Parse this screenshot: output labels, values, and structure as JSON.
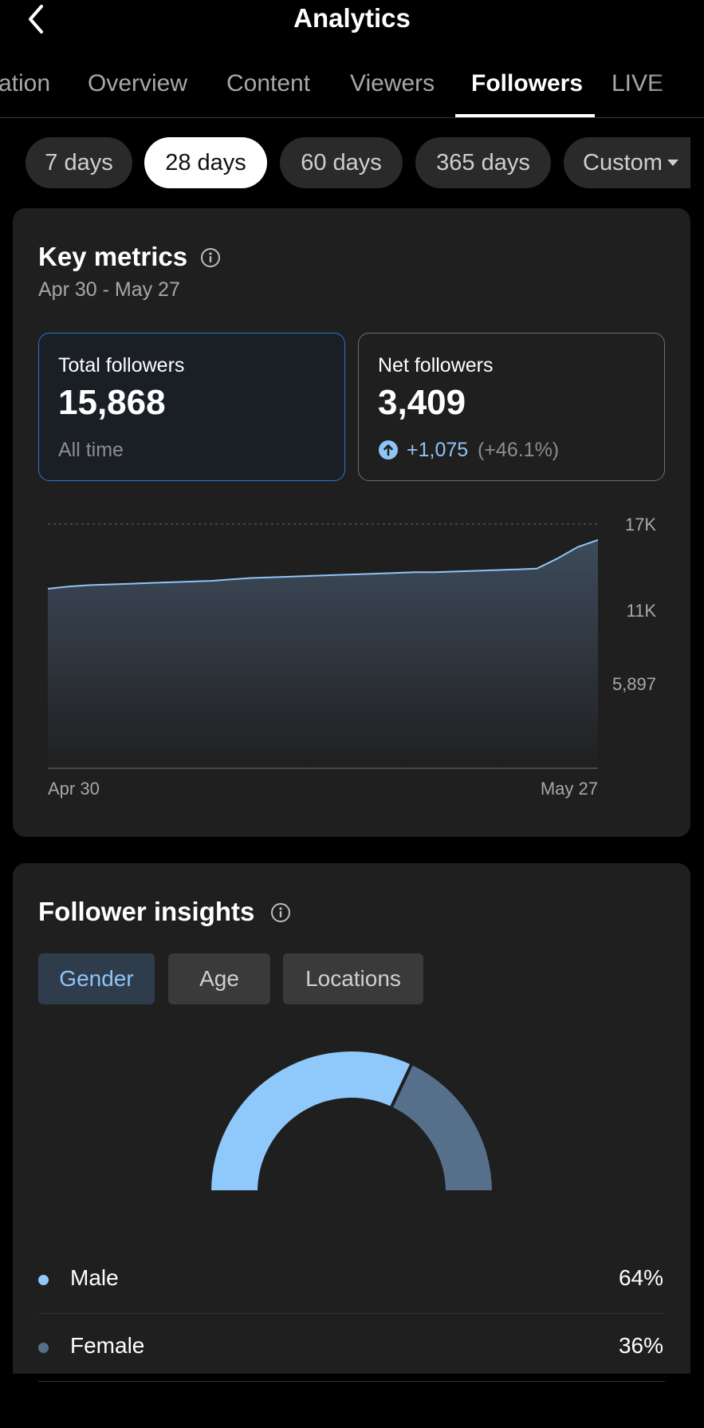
{
  "header": {
    "title": "Analytics",
    "back_icon": "chevron-left-icon"
  },
  "tabs": [
    {
      "label": "ation",
      "active": false
    },
    {
      "label": "Overview",
      "active": false
    },
    {
      "label": "Content",
      "active": false
    },
    {
      "label": "Viewers",
      "active": false
    },
    {
      "label": "Followers",
      "active": true
    },
    {
      "label": "LIVE",
      "active": false
    }
  ],
  "ranges": [
    {
      "label": "7 days",
      "active": false
    },
    {
      "label": "28 days",
      "active": true
    },
    {
      "label": "60 days",
      "active": false
    },
    {
      "label": "365 days",
      "active": false
    },
    {
      "label": "Custom",
      "active": false,
      "dropdown": true
    }
  ],
  "key_metrics": {
    "title": "Key metrics",
    "date_range": "Apr 30 - May 27",
    "total": {
      "label": "Total followers",
      "value": "15,868",
      "sub": "All time"
    },
    "net": {
      "label": "Net followers",
      "value": "3,409",
      "change": "+1,075",
      "change_pct": "(+46.1%)"
    }
  },
  "chart_data": {
    "type": "area",
    "x_labels": [
      "Apr 30",
      "May 27"
    ],
    "y_ticks": [
      "17K",
      "11K",
      "5,897"
    ],
    "ylim": [
      0,
      17000
    ],
    "grid": true,
    "values": [
      12500,
      12650,
      12750,
      12800,
      12850,
      12900,
      12950,
      13000,
      13050,
      13150,
      13250,
      13300,
      13350,
      13400,
      13450,
      13500,
      13550,
      13600,
      13650,
      13650,
      13700,
      13750,
      13800,
      13850,
      13900,
      14600,
      15400,
      15900
    ],
    "line_color": "#8fc4f5"
  },
  "insights": {
    "title": "Follower insights",
    "segments": [
      {
        "label": "Gender",
        "active": true
      },
      {
        "label": "Age",
        "active": false
      },
      {
        "label": "Locations",
        "active": false
      }
    ],
    "gender": [
      {
        "label": "Male",
        "value": "64%",
        "share": 64,
        "color": "#8fc8fb"
      },
      {
        "label": "Female",
        "value": "36%",
        "share": 36,
        "color": "#56708c"
      }
    ]
  },
  "colors": {
    "accent_blue": "#8fc4f5",
    "selected_border": "#2b75d6",
    "card_bg": "#1f1f1f",
    "page_bg": "#000000"
  }
}
